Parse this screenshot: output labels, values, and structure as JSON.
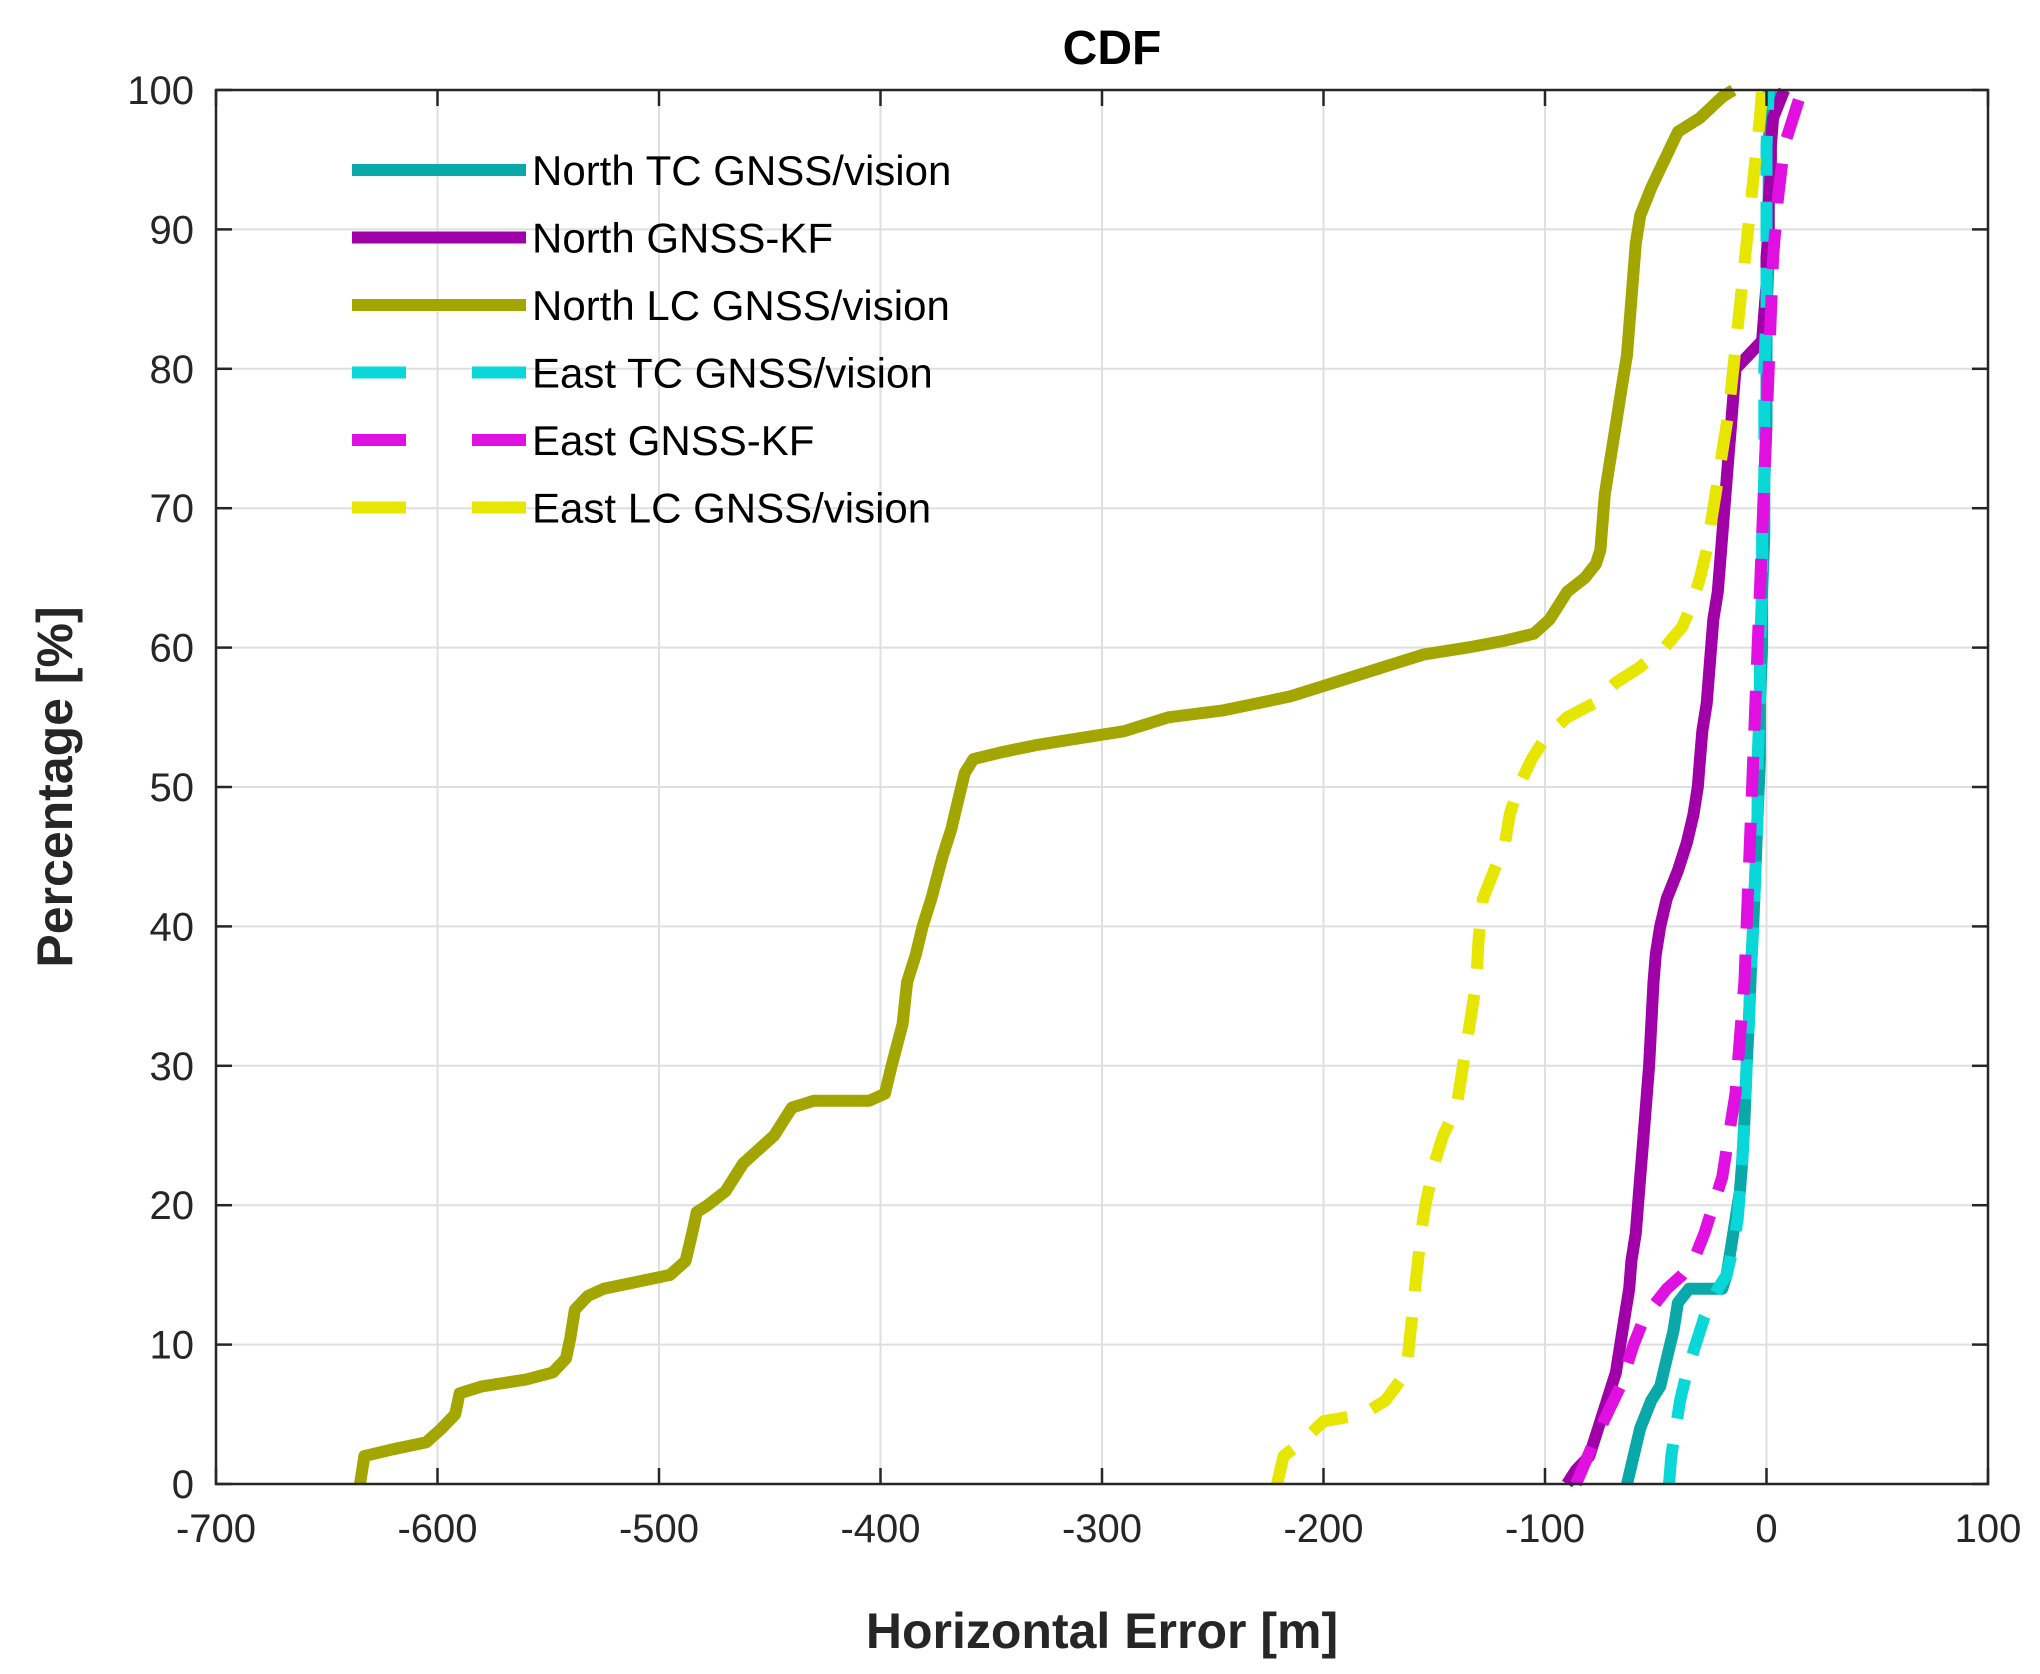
{
  "chart_data": {
    "type": "line",
    "title": "CDF",
    "xlabel": "Horizontal Error [m]",
    "ylabel": "Percentage [%]",
    "xlim": [
      -700,
      100
    ],
    "ylim": [
      0,
      100
    ],
    "xticks": [
      -700,
      -600,
      -500,
      -400,
      -300,
      -200,
      -100,
      0,
      100
    ],
    "yticks": [
      0,
      10,
      20,
      30,
      40,
      50,
      60,
      70,
      80,
      90,
      100
    ],
    "grid": true,
    "legend_position": "top-left",
    "series": [
      {
        "name": "North TC GNSS/vision",
        "color": "#0aa8a8",
        "style": "solid",
        "points": [
          [
            -63,
            0
          ],
          [
            -60,
            2
          ],
          [
            -57,
            4
          ],
          [
            -52,
            6
          ],
          [
            -48,
            7
          ],
          [
            -45,
            9
          ],
          [
            -42,
            11
          ],
          [
            -40,
            13
          ],
          [
            -35,
            14
          ],
          [
            -20,
            14
          ],
          [
            -18,
            15
          ],
          [
            -16,
            17
          ],
          [
            -14,
            19
          ],
          [
            -12,
            21
          ],
          [
            -11,
            23
          ],
          [
            -10,
            26
          ],
          [
            -9,
            30
          ],
          [
            -8,
            33
          ],
          [
            -7,
            37
          ],
          [
            -6,
            40
          ],
          [
            -5,
            44
          ],
          [
            -4,
            48
          ],
          [
            -3,
            52
          ],
          [
            -3,
            56
          ],
          [
            -2,
            60
          ],
          [
            -2,
            64
          ],
          [
            -1,
            68
          ],
          [
            -1,
            72
          ],
          [
            0,
            76
          ],
          [
            0,
            80
          ],
          [
            0,
            84
          ],
          [
            1,
            88
          ],
          [
            1,
            92
          ],
          [
            1,
            96
          ],
          [
            2,
            100
          ]
        ]
      },
      {
        "name": "North GNSS-KF",
        "color": "#a000a8",
        "style": "solid",
        "points": [
          [
            -90,
            0
          ],
          [
            -86,
            1
          ],
          [
            -80,
            2
          ],
          [
            -76,
            4
          ],
          [
            -72,
            6
          ],
          [
            -68,
            8
          ],
          [
            -66,
            10
          ],
          [
            -64,
            12
          ],
          [
            -62,
            14
          ],
          [
            -61,
            16
          ],
          [
            -59,
            18
          ],
          [
            -58,
            20
          ],
          [
            -57,
            22
          ],
          [
            -56,
            24
          ],
          [
            -55,
            26
          ],
          [
            -54,
            28
          ],
          [
            -53,
            30
          ],
          [
            -52,
            33
          ],
          [
            -51,
            36
          ],
          [
            -50,
            38
          ],
          [
            -48,
            40
          ],
          [
            -45,
            42
          ],
          [
            -40,
            44
          ],
          [
            -36,
            46
          ],
          [
            -33,
            48
          ],
          [
            -31,
            50
          ],
          [
            -30,
            52
          ],
          [
            -29,
            54
          ],
          [
            -27,
            56
          ],
          [
            -26,
            58
          ],
          [
            -25,
            60
          ],
          [
            -24,
            62
          ],
          [
            -22,
            64
          ],
          [
            -21,
            66
          ],
          [
            -20,
            68
          ],
          [
            -19,
            70
          ],
          [
            -18,
            72
          ],
          [
            -17,
            74
          ],
          [
            -16,
            76
          ],
          [
            -15,
            78
          ],
          [
            -14,
            80
          ],
          [
            -8,
            81
          ],
          [
            -2,
            82
          ],
          [
            -1,
            84
          ],
          [
            0,
            86
          ],
          [
            0,
            88
          ],
          [
            1,
            90
          ],
          [
            1,
            92
          ],
          [
            2,
            94
          ],
          [
            2,
            96
          ],
          [
            3,
            98
          ],
          [
            8,
            100
          ]
        ]
      },
      {
        "name": "North LC GNSS/vision",
        "color": "#a4a600",
        "style": "solid",
        "points": [
          [
            -635,
            0
          ],
          [
            -633,
            2
          ],
          [
            -620,
            2.5
          ],
          [
            -605,
            3
          ],
          [
            -598,
            4
          ],
          [
            -592,
            5
          ],
          [
            -590,
            6.5
          ],
          [
            -580,
            7
          ],
          [
            -560,
            7.5
          ],
          [
            -548,
            8
          ],
          [
            -542,
            9
          ],
          [
            -540,
            10.5
          ],
          [
            -538,
            12.5
          ],
          [
            -532,
            13.5
          ],
          [
            -525,
            14
          ],
          [
            -510,
            14.5
          ],
          [
            -495,
            15
          ],
          [
            -488,
            16
          ],
          [
            -485,
            18
          ],
          [
            -483,
            19.5
          ],
          [
            -478,
            20
          ],
          [
            -470,
            21
          ],
          [
            -462,
            23
          ],
          [
            -455,
            24
          ],
          [
            -448,
            25
          ],
          [
            -444,
            26
          ],
          [
            -440,
            27
          ],
          [
            -430,
            27.5
          ],
          [
            -405,
            27.5
          ],
          [
            -398,
            28
          ],
          [
            -395,
            30
          ],
          [
            -390,
            33
          ],
          [
            -388,
            36
          ],
          [
            -384,
            38
          ],
          [
            -381,
            40
          ],
          [
            -377,
            42
          ],
          [
            -372,
            45
          ],
          [
            -368,
            47
          ],
          [
            -365,
            49
          ],
          [
            -362,
            51
          ],
          [
            -358,
            52
          ],
          [
            -345,
            52.5
          ],
          [
            -330,
            53
          ],
          [
            -310,
            53.5
          ],
          [
            -290,
            54
          ],
          [
            -270,
            55
          ],
          [
            -245,
            55.5
          ],
          [
            -230,
            56
          ],
          [
            -215,
            56.5
          ],
          [
            -195,
            57.5
          ],
          [
            -175,
            58.5
          ],
          [
            -155,
            59.5
          ],
          [
            -135,
            60
          ],
          [
            -118,
            60.5
          ],
          [
            -105,
            61
          ],
          [
            -98,
            62
          ],
          [
            -94,
            63
          ],
          [
            -90,
            64
          ],
          [
            -82,
            65
          ],
          [
            -77,
            66
          ],
          [
            -75,
            67
          ],
          [
            -74,
            69
          ],
          [
            -73,
            71
          ],
          [
            -71,
            73
          ],
          [
            -69,
            75
          ],
          [
            -67,
            77
          ],
          [
            -65,
            79
          ],
          [
            -63,
            81
          ],
          [
            -62,
            83
          ],
          [
            -61,
            85
          ],
          [
            -60,
            87
          ],
          [
            -59,
            89
          ],
          [
            -57,
            91
          ],
          [
            -52,
            93
          ],
          [
            -46,
            95
          ],
          [
            -40,
            97
          ],
          [
            -30,
            98
          ],
          [
            -20,
            99.5
          ],
          [
            -15,
            100
          ]
        ]
      },
      {
        "name": "East TC GNSS/vision",
        "color": "#0ad8d8",
        "style": "dashed",
        "points": [
          [
            -44,
            0
          ],
          [
            -43,
            2
          ],
          [
            -41,
            4
          ],
          [
            -39,
            6
          ],
          [
            -36,
            8
          ],
          [
            -32,
            10
          ],
          [
            -28,
            12
          ],
          [
            -22,
            14
          ],
          [
            -18,
            15
          ],
          [
            -15,
            17
          ],
          [
            -13,
            19
          ],
          [
            -12,
            21
          ],
          [
            -11,
            23
          ],
          [
            -10,
            26
          ],
          [
            -9,
            30
          ],
          [
            -8,
            33
          ],
          [
            -7,
            37
          ],
          [
            -6,
            40
          ],
          [
            -5,
            44
          ],
          [
            -4,
            48
          ],
          [
            -4,
            52
          ],
          [
            -3,
            56
          ],
          [
            -3,
            60
          ],
          [
            -2,
            64
          ],
          [
            -2,
            68
          ],
          [
            -1,
            72
          ],
          [
            -1,
            76
          ],
          [
            -1,
            80
          ],
          [
            0,
            84
          ],
          [
            0,
            88
          ],
          [
            0,
            92
          ],
          [
            0,
            96
          ],
          [
            1,
            100
          ]
        ]
      },
      {
        "name": "East GNSS-KF",
        "color": "#e010e0",
        "style": "dashed",
        "points": [
          [
            -86,
            0
          ],
          [
            -82,
            1.5
          ],
          [
            -78,
            3
          ],
          [
            -72,
            5
          ],
          [
            -66,
            7
          ],
          [
            -60,
            10
          ],
          [
            -55,
            12
          ],
          [
            -45,
            14
          ],
          [
            -38,
            15
          ],
          [
            -33,
            16
          ],
          [
            -28,
            18
          ],
          [
            -24,
            20
          ],
          [
            -20,
            22
          ],
          [
            -17,
            25
          ],
          [
            -14,
            28
          ],
          [
            -12,
            32
          ],
          [
            -10,
            36
          ],
          [
            -9,
            40
          ],
          [
            -8,
            44
          ],
          [
            -7,
            48
          ],
          [
            -6,
            52
          ],
          [
            -5,
            56
          ],
          [
            -4,
            60
          ],
          [
            -3,
            64
          ],
          [
            -2,
            68
          ],
          [
            -1,
            72
          ],
          [
            0,
            76
          ],
          [
            1,
            80
          ],
          [
            2,
            84
          ],
          [
            3,
            88
          ],
          [
            5,
            92
          ],
          [
            8,
            96
          ],
          [
            12,
            98
          ],
          [
            16,
            100
          ]
        ]
      },
      {
        "name": "East LC GNSS/vision",
        "color": "#e6e600",
        "style": "dashed",
        "points": [
          [
            -221,
            0
          ],
          [
            -218,
            2
          ],
          [
            -210,
            3
          ],
          [
            -200,
            4.5
          ],
          [
            -182,
            5
          ],
          [
            -172,
            6
          ],
          [
            -165,
            7.5
          ],
          [
            -162,
            9
          ],
          [
            -160,
            12
          ],
          [
            -158,
            15
          ],
          [
            -156,
            18
          ],
          [
            -154,
            20
          ],
          [
            -150,
            23
          ],
          [
            -146,
            25
          ],
          [
            -140,
            27
          ],
          [
            -137,
            30
          ],
          [
            -134,
            33
          ],
          [
            -131,
            36
          ],
          [
            -130,
            39
          ],
          [
            -128,
            42
          ],
          [
            -123,
            44
          ],
          [
            -118,
            46
          ],
          [
            -116,
            48
          ],
          [
            -112,
            50
          ],
          [
            -106,
            52
          ],
          [
            -100,
            53.5
          ],
          [
            -90,
            55
          ],
          [
            -78,
            56
          ],
          [
            -68,
            57.5
          ],
          [
            -58,
            58.5
          ],
          [
            -46,
            60
          ],
          [
            -38,
            61.5
          ],
          [
            -34,
            63
          ],
          [
            -30,
            65
          ],
          [
            -27,
            67
          ],
          [
            -25,
            69
          ],
          [
            -23,
            71
          ],
          [
            -21,
            73
          ],
          [
            -19,
            75
          ],
          [
            -17,
            77
          ],
          [
            -15,
            80
          ],
          [
            -13,
            83
          ],
          [
            -11,
            86
          ],
          [
            -9,
            89
          ],
          [
            -7,
            92
          ],
          [
            -5,
            95
          ],
          [
            -3,
            98
          ],
          [
            -2,
            100
          ]
        ]
      }
    ]
  }
}
